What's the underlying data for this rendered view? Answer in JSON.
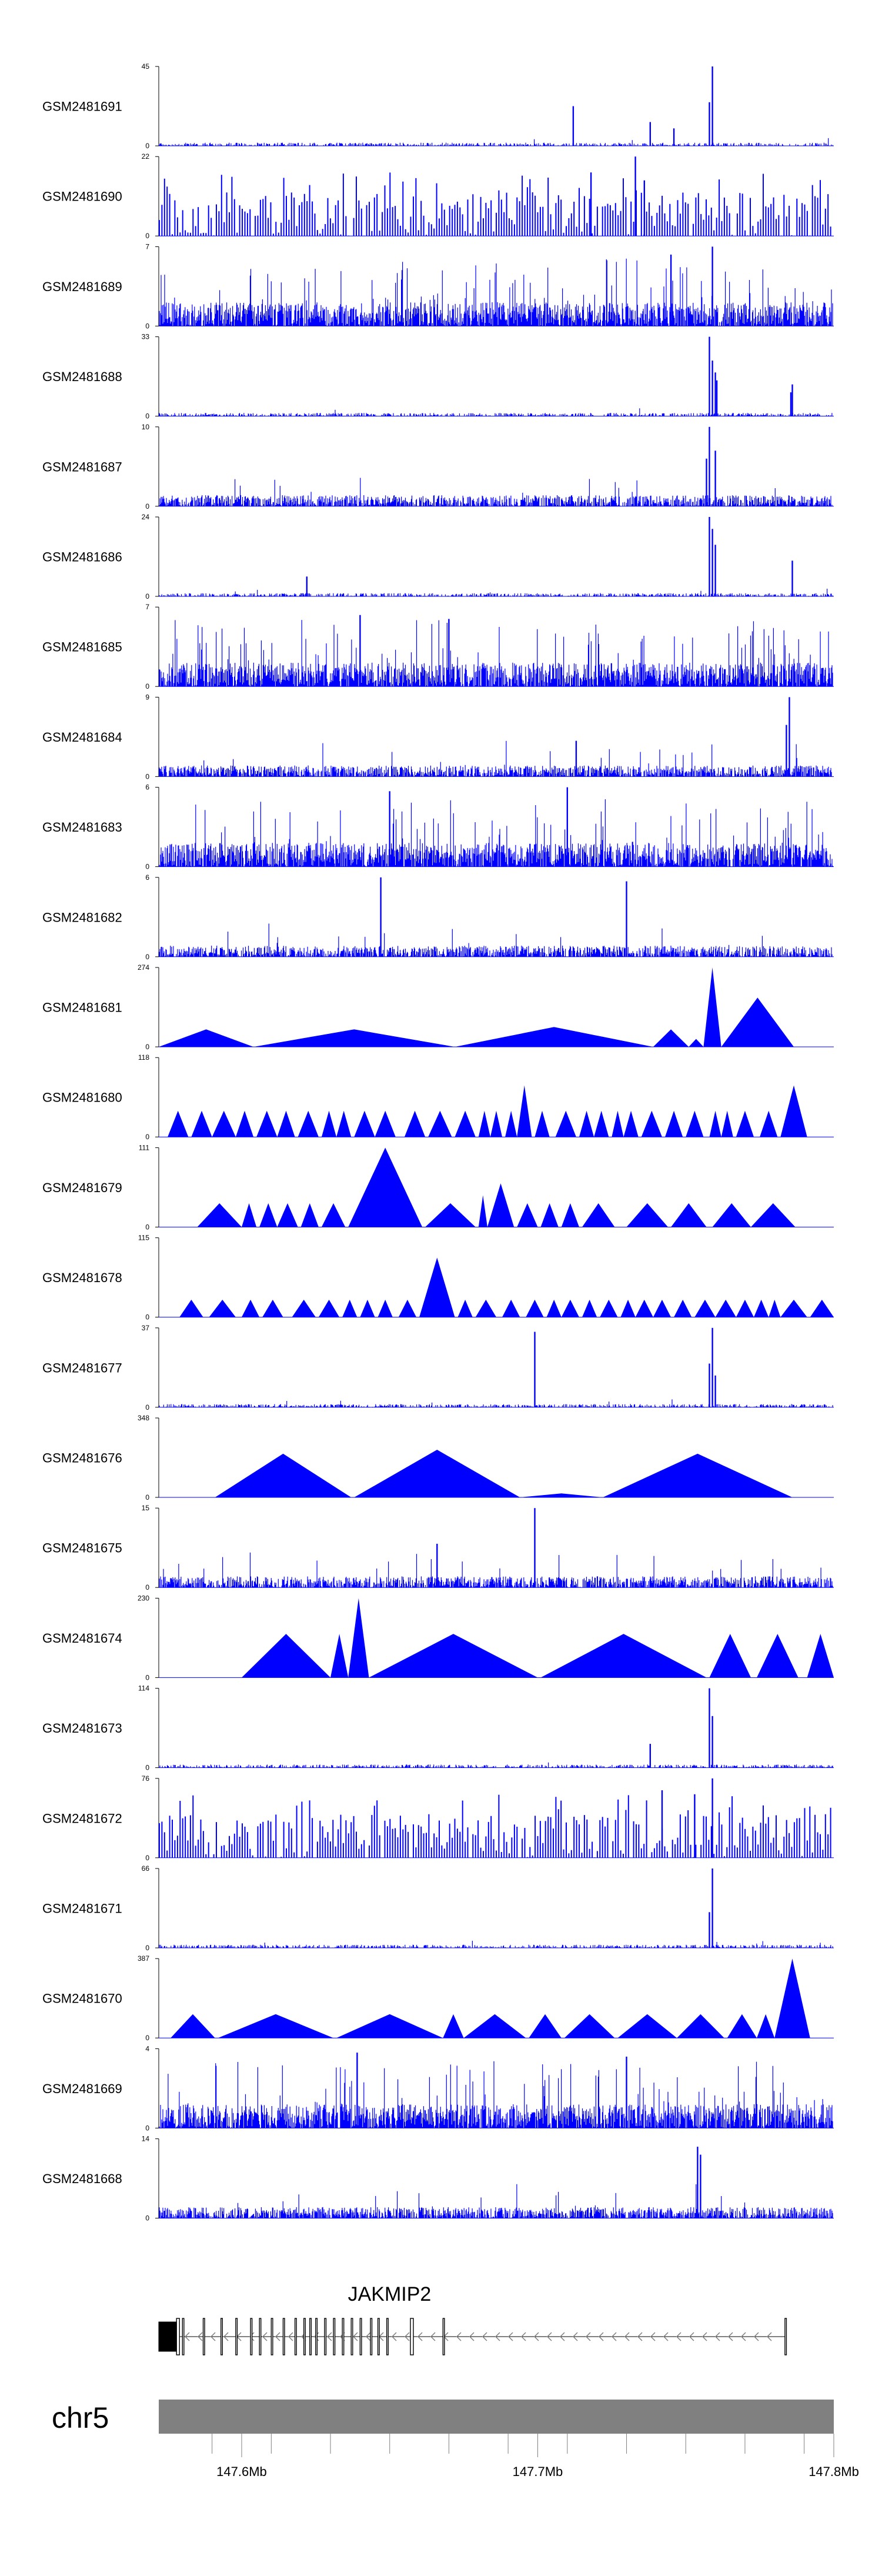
{
  "chart_data": {
    "type": "area",
    "title": "",
    "xlabel": "",
    "ylabel": "",
    "genome_region": {
      "chromosome": "chr5",
      "start_mb": 147.572,
      "end_mb": 147.8
    },
    "colors": {
      "signal": "#0000ff",
      "axis": "#000000",
      "ideogram": "#808080",
      "gene": "#000000"
    },
    "tracks": [
      {
        "name": "GSM2481691",
        "ymin": 0,
        "ymax": 45,
        "style": "sparse",
        "seed": 11,
        "peaks": [
          [
            147.712,
            0.5
          ],
          [
            147.738,
            0.3
          ],
          [
            147.746,
            0.22
          ],
          [
            147.759,
            1.0
          ],
          [
            147.758,
            0.55
          ]
        ]
      },
      {
        "name": "GSM2481690",
        "ymin": 0,
        "ymax": 22,
        "style": "spiky",
        "seed": 23,
        "peaks": [
          [
            147.718,
            0.8
          ],
          [
            147.733,
            1.0
          ],
          [
            147.736,
            0.7
          ]
        ]
      },
      {
        "name": "GSM2481689",
        "ymin": 0,
        "ymax": 7,
        "style": "dense",
        "seed": 37,
        "peaks": [
          [
            147.745,
            0.9
          ],
          [
            147.759,
            1.0
          ]
        ]
      },
      {
        "name": "GSM2481688",
        "ymin": 0,
        "ymax": 33,
        "style": "sparse",
        "seed": 41,
        "peaks": [
          [
            147.758,
            1.0
          ],
          [
            147.759,
            0.7
          ],
          [
            147.76,
            0.55
          ],
          [
            147.7605,
            0.45
          ],
          [
            147.786,
            0.4
          ],
          [
            147.7855,
            0.3
          ]
        ]
      },
      {
        "name": "GSM2481687",
        "ymin": 0,
        "ymax": 10,
        "style": "medium",
        "seed": 53,
        "peaks": [
          [
            147.758,
            1.0
          ],
          [
            147.757,
            0.6
          ],
          [
            147.76,
            0.7
          ]
        ]
      },
      {
        "name": "GSM2481686",
        "ymin": 0,
        "ymax": 24,
        "style": "sparse",
        "seed": 67,
        "peaks": [
          [
            147.622,
            0.25
          ],
          [
            147.758,
            1.0
          ],
          [
            147.759,
            0.85
          ],
          [
            147.76,
            0.65
          ],
          [
            147.786,
            0.45
          ]
        ]
      },
      {
        "name": "GSM2481685",
        "ymin": 0,
        "ymax": 7,
        "style": "dense",
        "seed": 71,
        "peaks": [
          [
            147.64,
            0.9
          ],
          [
            147.67,
            0.85
          ]
        ]
      },
      {
        "name": "GSM2481684",
        "ymin": 0,
        "ymax": 9,
        "style": "medium",
        "seed": 83,
        "peaks": [
          [
            147.713,
            0.45
          ],
          [
            147.785,
            1.0
          ],
          [
            147.784,
            0.65
          ]
        ]
      },
      {
        "name": "GSM2481683",
        "ymin": 0,
        "ymax": 6,
        "style": "dense",
        "seed": 97,
        "peaks": [
          [
            147.65,
            0.95
          ],
          [
            147.71,
            1.0
          ]
        ]
      },
      {
        "name": "GSM2481682",
        "ymin": 0,
        "ymax": 6,
        "style": "medium",
        "seed": 101,
        "peaks": [
          [
            147.647,
            1.0
          ],
          [
            147.73,
            0.95
          ]
        ]
      },
      {
        "name": "GSM2481681",
        "ymin": 0,
        "ymax": 274,
        "style": "triangles",
        "seed": 0,
        "tri": [
          [
            147.572,
            147.604,
            0.22
          ],
          [
            147.604,
            147.672,
            0.22
          ],
          [
            147.672,
            147.739,
            0.25
          ],
          [
            147.739,
            147.751,
            0.22
          ],
          [
            147.751,
            147.756,
            0.1
          ],
          [
            147.756,
            147.762,
            1.0
          ],
          [
            147.762,
            147.7865,
            0.62
          ]
        ]
      },
      {
        "name": "GSM2481680",
        "ymin": 0,
        "ymax": 118,
        "style": "triangles",
        "seed": 0,
        "tri": [
          [
            147.575,
            147.582,
            0.33
          ],
          [
            147.583,
            147.59,
            0.33
          ],
          [
            147.59,
            147.598,
            0.33
          ],
          [
            147.598,
            147.604,
            0.33
          ],
          [
            147.605,
            147.612,
            0.33
          ],
          [
            147.612,
            147.618,
            0.33
          ],
          [
            147.619,
            147.626,
            0.33
          ],
          [
            147.627,
            147.632,
            0.33
          ],
          [
            147.632,
            147.637,
            0.33
          ],
          [
            147.638,
            147.645,
            0.33
          ],
          [
            147.645,
            147.652,
            0.33
          ],
          [
            147.655,
            147.662,
            0.33
          ],
          [
            147.663,
            147.671,
            0.33
          ],
          [
            147.672,
            147.679,
            0.33
          ],
          [
            147.68,
            147.684,
            0.33
          ],
          [
            147.684,
            147.688,
            0.33
          ],
          [
            147.689,
            147.693,
            0.33
          ],
          [
            147.693,
            147.698,
            0.65
          ],
          [
            147.699,
            147.704,
            0.33
          ],
          [
            147.706,
            147.713,
            0.33
          ],
          [
            147.714,
            147.719,
            0.33
          ],
          [
            147.719,
            147.724,
            0.33
          ],
          [
            147.725,
            147.729,
            0.33
          ],
          [
            147.729,
            147.734,
            0.33
          ],
          [
            147.735,
            147.742,
            0.33
          ],
          [
            147.743,
            147.749,
            0.33
          ],
          [
            147.75,
            147.756,
            0.33
          ],
          [
            147.758,
            147.762,
            0.33
          ],
          [
            147.762,
            147.766,
            0.33
          ],
          [
            147.767,
            147.773,
            0.33
          ],
          [
            147.775,
            147.781,
            0.33
          ],
          [
            147.782,
            147.791,
            0.65
          ]
        ]
      },
      {
        "name": "GSM2481679",
        "ymin": 0,
        "ymax": 111,
        "style": "triangles",
        "seed": 0,
        "tri": [
          [
            147.585,
            147.6,
            0.3
          ],
          [
            147.6,
            147.605,
            0.3
          ],
          [
            147.606,
            147.612,
            0.3
          ],
          [
            147.612,
            147.619,
            0.3
          ],
          [
            147.62,
            147.626,
            0.3
          ],
          [
            147.627,
            147.635,
            0.3
          ],
          [
            147.636,
            147.661,
            1.0
          ],
          [
            147.662,
            147.679,
            0.3
          ],
          [
            147.68,
            147.683,
            0.4
          ],
          [
            147.683,
            147.692,
            0.55
          ],
          [
            147.693,
            147.7,
            0.3
          ],
          [
            147.701,
            147.707,
            0.3
          ],
          [
            147.708,
            147.714,
            0.3
          ],
          [
            147.715,
            147.726,
            0.3
          ],
          [
            147.73,
            147.744,
            0.3
          ],
          [
            147.745,
            147.757,
            0.3
          ],
          [
            147.759,
            147.772,
            0.3
          ],
          [
            147.772,
            147.787,
            0.3
          ]
        ]
      },
      {
        "name": "GSM2481678",
        "ymin": 0,
        "ymax": 115,
        "style": "triangles",
        "seed": 0,
        "tri": [
          [
            147.579,
            147.587,
            0.22
          ],
          [
            147.589,
            147.598,
            0.22
          ],
          [
            147.6,
            147.606,
            0.22
          ],
          [
            147.607,
            147.614,
            0.22
          ],
          [
            147.617,
            147.625,
            0.22
          ],
          [
            147.626,
            147.633,
            0.22
          ],
          [
            147.634,
            147.639,
            0.22
          ],
          [
            147.64,
            147.645,
            0.22
          ],
          [
            147.646,
            147.651,
            0.22
          ],
          [
            147.653,
            147.659,
            0.22
          ],
          [
            147.66,
            147.672,
            0.75
          ],
          [
            147.673,
            147.678,
            0.22
          ],
          [
            147.679,
            147.686,
            0.22
          ],
          [
            147.688,
            147.694,
            0.22
          ],
          [
            147.696,
            147.702,
            0.22
          ],
          [
            147.703,
            147.708,
            0.22
          ],
          [
            147.708,
            147.714,
            0.22
          ],
          [
            147.715,
            147.72,
            0.22
          ],
          [
            147.721,
            147.727,
            0.22
          ],
          [
            147.728,
            147.733,
            0.22
          ],
          [
            147.733,
            147.739,
            0.22
          ],
          [
            147.739,
            147.745,
            0.22
          ],
          [
            147.746,
            147.752,
            0.22
          ],
          [
            147.753,
            147.76,
            0.22
          ],
          [
            147.76,
            147.767,
            0.22
          ],
          [
            147.767,
            147.773,
            0.22
          ],
          [
            147.773,
            147.778,
            0.22
          ],
          [
            147.778,
            147.782,
            0.22
          ],
          [
            147.782,
            147.791,
            0.22
          ],
          [
            147.792,
            147.8,
            0.22
          ]
        ]
      },
      {
        "name": "GSM2481677",
        "ymin": 0,
        "ymax": 37,
        "style": "sparse",
        "seed": 113,
        "peaks": [
          [
            147.699,
            0.95
          ],
          [
            147.759,
            1.0
          ],
          [
            147.758,
            0.55
          ],
          [
            147.76,
            0.4
          ]
        ]
      },
      {
        "name": "GSM2481676",
        "ymin": 0,
        "ymax": 348,
        "style": "triangles",
        "seed": 0,
        "tri": [
          [
            147.591,
            147.637,
            0.55
          ],
          [
            147.638,
            147.694,
            0.6
          ],
          [
            147.694,
            147.722,
            0.05
          ],
          [
            147.722,
            147.786,
            0.55
          ]
        ]
      },
      {
        "name": "GSM2481675",
        "ymin": 0,
        "ymax": 15,
        "style": "medium",
        "seed": 127,
        "peaks": [
          [
            147.699,
            1.0
          ],
          [
            147.666,
            0.55
          ]
        ]
      },
      {
        "name": "GSM2481674",
        "ymin": 0,
        "ymax": 230,
        "style": "triangles",
        "seed": 0,
        "tri": [
          [
            147.6,
            147.63,
            0.55
          ],
          [
            147.63,
            147.636,
            0.55
          ],
          [
            147.636,
            147.643,
            1.0
          ],
          [
            147.643,
            147.7,
            0.55
          ],
          [
            147.701,
            147.757,
            0.55
          ],
          [
            147.758,
            147.772,
            0.55
          ],
          [
            147.774,
            147.788,
            0.55
          ],
          [
            147.791,
            147.8,
            0.55
          ]
        ]
      },
      {
        "name": "GSM2481673",
        "ymin": 0,
        "ymax": 114,
        "style": "sparse",
        "seed": 131,
        "peaks": [
          [
            147.758,
            1.0
          ],
          [
            147.759,
            0.65
          ],
          [
            147.738,
            0.3
          ]
        ]
      },
      {
        "name": "GSM2481672",
        "ymin": 0,
        "ymax": 76,
        "style": "spiky",
        "seed": 149,
        "peaks": [
          [
            147.742,
            0.85
          ],
          [
            147.753,
            0.8
          ],
          [
            147.759,
            1.0
          ]
        ]
      },
      {
        "name": "GSM2481671",
        "ymin": 0,
        "ymax": 66,
        "style": "sparse",
        "seed": 151,
        "peaks": [
          [
            147.759,
            1.0
          ],
          [
            147.758,
            0.45
          ]
        ]
      },
      {
        "name": "GSM2481670",
        "ymin": 0,
        "ymax": 387,
        "style": "triangles",
        "seed": 0,
        "tri": [
          [
            147.576,
            147.591,
            0.3
          ],
          [
            147.592,
            147.631,
            0.3
          ],
          [
            147.632,
            147.668,
            0.3
          ],
          [
            147.668,
            147.675,
            0.3
          ],
          [
            147.675,
            147.696,
            0.3
          ],
          [
            147.697,
            147.708,
            0.3
          ],
          [
            147.709,
            147.726,
            0.3
          ],
          [
            147.727,
            147.747,
            0.3
          ],
          [
            147.747,
            147.763,
            0.3
          ],
          [
            147.764,
            147.774,
            0.3
          ],
          [
            147.774,
            147.78,
            0.3
          ],
          [
            147.78,
            147.792,
            1.0
          ]
        ]
      },
      {
        "name": "GSM2481669",
        "ymin": 0,
        "ymax": 4,
        "style": "dense",
        "seed": 163,
        "peaks": [
          [
            147.639,
            0.95
          ],
          [
            147.73,
            0.9
          ]
        ]
      },
      {
        "name": "GSM2481668",
        "ymin": 0,
        "ymax": 14,
        "style": "medium",
        "seed": 173,
        "peaks": [
          [
            147.754,
            0.9
          ],
          [
            147.755,
            0.8
          ]
        ]
      }
    ],
    "gene": {
      "name": "JAKMIP2",
      "strand": "-",
      "exons": [
        [
          147.572,
          147.578,
          "utr"
        ],
        [
          147.578,
          147.579,
          "cds"
        ],
        [
          147.58,
          147.5805,
          "cds"
        ],
        [
          147.587,
          147.5875,
          "cds"
        ],
        [
          147.593,
          147.5935,
          "cds"
        ],
        [
          147.598,
          147.5985,
          "cds"
        ],
        [
          147.603,
          147.6035,
          "cds"
        ],
        [
          147.606,
          147.6065,
          "cds"
        ],
        [
          147.61,
          147.6105,
          "cds"
        ],
        [
          147.614,
          147.6145,
          "cds"
        ],
        [
          147.618,
          147.6185,
          "cds"
        ],
        [
          147.621,
          147.6215,
          "cds"
        ],
        [
          147.623,
          147.6235,
          "cds"
        ],
        [
          147.625,
          147.6255,
          "cds"
        ],
        [
          147.628,
          147.6285,
          "cds"
        ],
        [
          147.631,
          147.6315,
          "cds"
        ],
        [
          147.634,
          147.6345,
          "cds"
        ],
        [
          147.637,
          147.6375,
          "cds"
        ],
        [
          147.64,
          147.6405,
          "cds"
        ],
        [
          147.6435,
          147.644,
          "cds"
        ],
        [
          147.646,
          147.6465,
          "cds"
        ],
        [
          147.649,
          147.6495,
          "cds"
        ],
        [
          147.657,
          147.658,
          "cds"
        ],
        [
          147.668,
          147.6685,
          "cds"
        ],
        [
          147.7835,
          147.784,
          "cds"
        ]
      ],
      "span": [
        147.572,
        147.7835
      ]
    },
    "ideogram": {
      "chromosome": "chr5",
      "start_mb": 147.572,
      "end_mb": 147.8
    },
    "axis": {
      "ticks": [
        147.59,
        147.61,
        147.63,
        147.65,
        147.67,
        147.69,
        147.71,
        147.73,
        147.75,
        147.77,
        147.79
      ],
      "labeled_ticks": [
        {
          "value": 147.6,
          "label": "147.6Mb"
        },
        {
          "value": 147.7,
          "label": "147.7Mb"
        },
        {
          "value": 147.8,
          "label": "147.8Mb"
        }
      ]
    }
  }
}
